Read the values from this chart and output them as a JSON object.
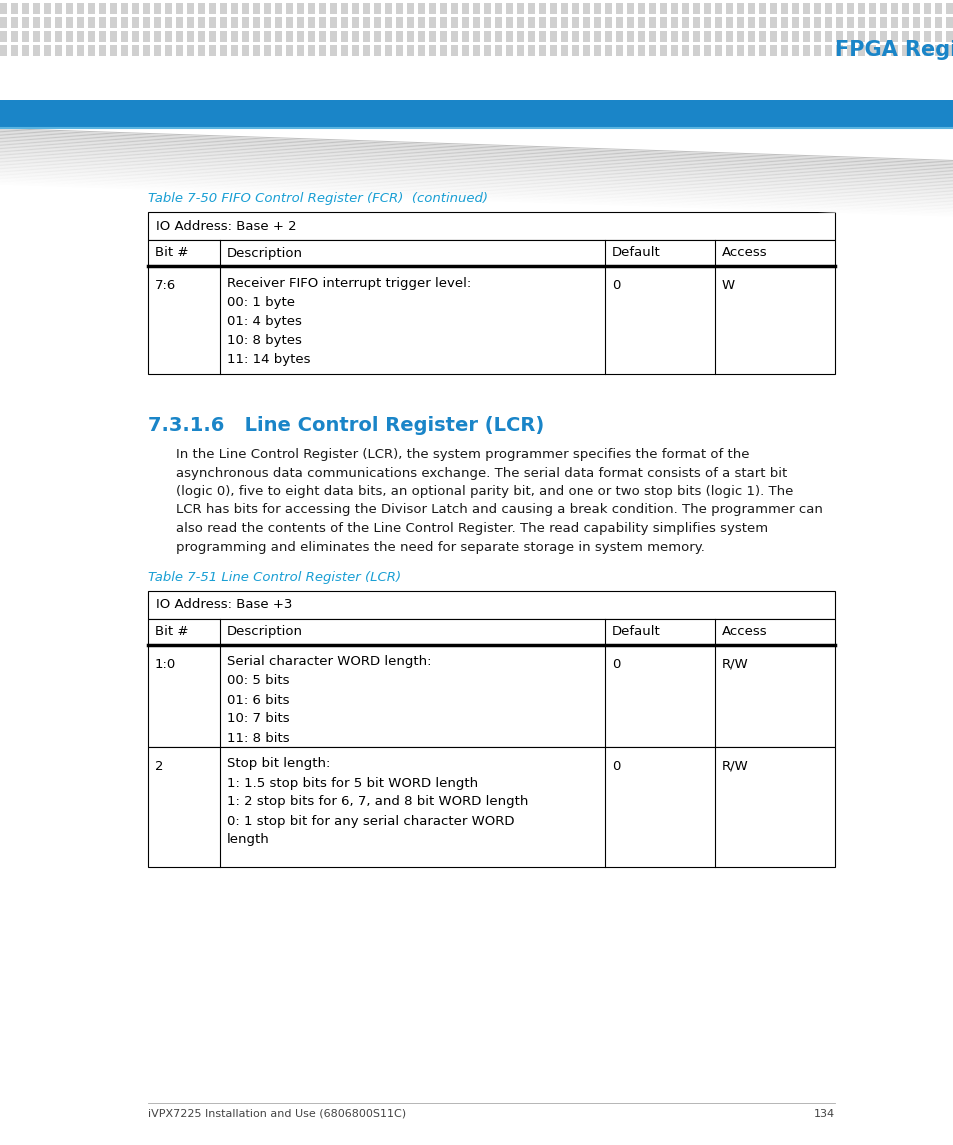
{
  "page_bg": "#ffffff",
  "header_dot_color": "#d0d0d0",
  "header_blue_bar_color": "#1a85c8",
  "header_title": "FPGA Registers",
  "header_title_color": "#1a85c8",
  "footer_text": "iVPX7225 Installation and Use (6806800S11C)",
  "footer_page": "134",
  "table1_caption": "Table 7-50 FIFO Control Register (FCR)  (continued)",
  "table1_caption_color": "#1a9fd4",
  "table1_address": "IO Address: Base + 2",
  "table1_headers": [
    "Bit #",
    "Description",
    "Default",
    "Access"
  ],
  "table1_rows": [
    [
      "7:6",
      "Receiver FIFO interrupt trigger level:\n00: 1 byte\n01: 4 bytes\n10: 8 bytes\n11: 14 bytes",
      "0",
      "W"
    ]
  ],
  "section_num": "7.3.1.6",
  "section_title": "Line Control Register (LCR)",
  "section_color": "#1a85c8",
  "section_body_lines": [
    "In the Line Control Register (LCR), the system programmer specifies the format of the",
    "asynchronous data communications exchange. The serial data format consists of a start bit",
    "(logic 0), five to eight data bits, an optional parity bit, and one or two stop bits (logic 1). The",
    "LCR has bits for accessing the Divisor Latch and causing a break condition. The programmer can",
    "also read the contents of the Line Control Register. The read capability simplifies system",
    "programming and eliminates the need for separate storage in system memory."
  ],
  "table2_caption": "Table 7-51 Line Control Register (LCR)",
  "table2_caption_color": "#1a9fd4",
  "table2_address": "IO Address: Base +3",
  "table2_headers": [
    "Bit #",
    "Description",
    "Default",
    "Access"
  ],
  "table2_rows": [
    [
      "1:0",
      "Serial character WORD length:\n00: 5 bits\n01: 6 bits\n10: 7 bits\n11: 8 bits",
      "0",
      "R/W"
    ],
    [
      "2",
      "Stop bit length:\n1: 1.5 stop bits for 5 bit WORD length\n1: 2 stop bits for 6, 7, and 8 bit WORD length\n0: 1 stop bit for any serial character WORD\nlength",
      "0",
      "R/W"
    ]
  ]
}
